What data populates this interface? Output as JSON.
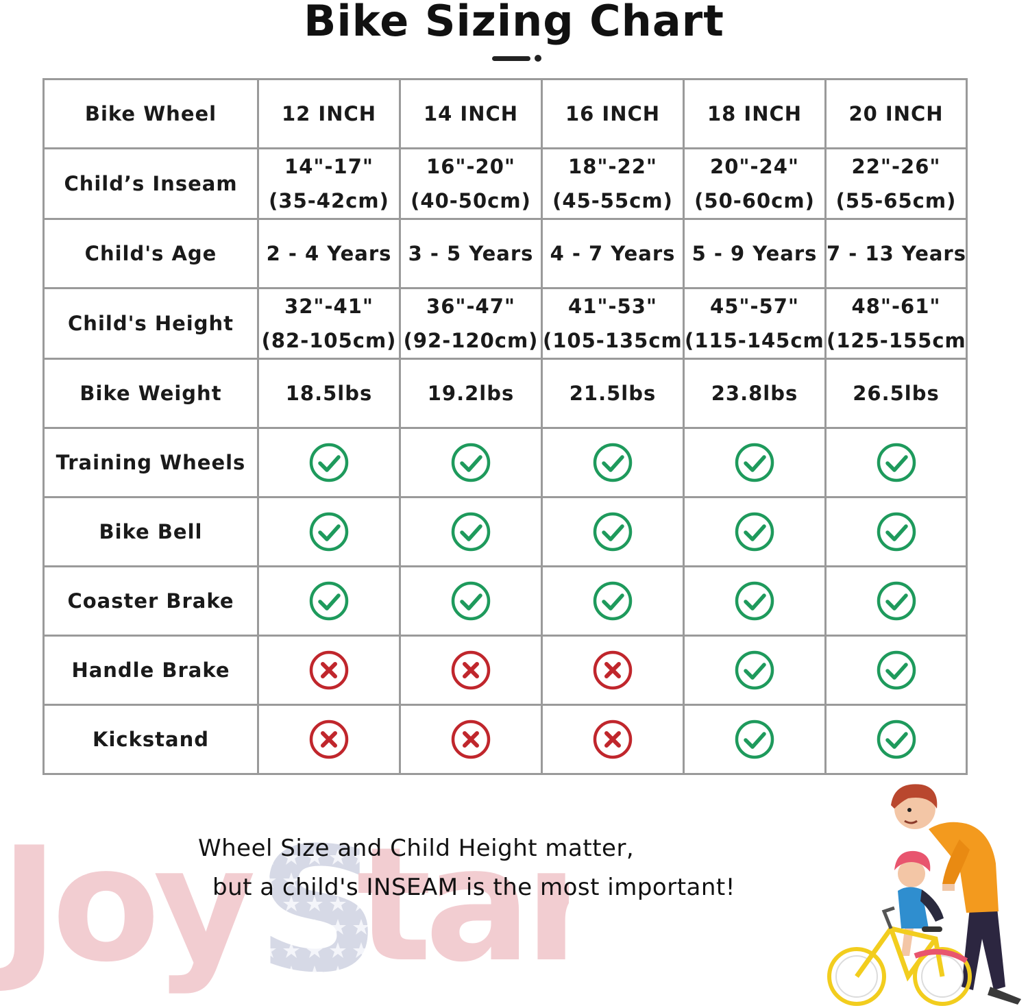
{
  "title": "Bike Sizing Chart",
  "table": {
    "header": {
      "label": "Bike Wheel",
      "values": [
        "12 INCH",
        "14 INCH",
        "16 INCH",
        "18 INCH",
        "20 INCH"
      ]
    },
    "rows": [
      {
        "label": "Child’s Inseam",
        "type": "text2",
        "values": [
          [
            "14\"-17\"",
            "(35-42cm)"
          ],
          [
            "16\"-20\"",
            "(40-50cm)"
          ],
          [
            "18\"-22\"",
            "(45-55cm)"
          ],
          [
            "20\"-24\"",
            "(50-60cm)"
          ],
          [
            "22\"-26\"",
            "(55-65cm)"
          ]
        ]
      },
      {
        "label": "Child's Age",
        "type": "text",
        "values": [
          "2 - 4 Years",
          "3 - 5 Years",
          "4 - 7 Years",
          "5 - 9 Years",
          "7 - 13 Years"
        ]
      },
      {
        "label": "Child's Height",
        "type": "text2",
        "values": [
          [
            "32\"-41\"",
            "(82-105cm)"
          ],
          [
            "36\"-47\"",
            "(92-120cm)"
          ],
          [
            "41\"-53\"",
            "(105-135cm)"
          ],
          [
            "45\"-57\"",
            "(115-145cm)"
          ],
          [
            "48\"-61\"",
            "(125-155cm)"
          ]
        ]
      },
      {
        "label": "Bike Weight",
        "type": "text",
        "values": [
          "18.5lbs",
          "19.2lbs",
          "21.5lbs",
          "23.8lbs",
          "26.5lbs"
        ]
      },
      {
        "label": "Training Wheels",
        "type": "icon",
        "values": [
          "check",
          "check",
          "check",
          "check",
          "check"
        ]
      },
      {
        "label": "Bike Bell",
        "type": "icon",
        "values": [
          "check",
          "check",
          "check",
          "check",
          "check"
        ]
      },
      {
        "label": "Coaster Brake",
        "type": "icon",
        "values": [
          "check",
          "check",
          "check",
          "check",
          "check"
        ]
      },
      {
        "label": "Handle Brake",
        "type": "icon",
        "values": [
          "cross",
          "cross",
          "cross",
          "check",
          "check"
        ]
      },
      {
        "label": "Kickstand",
        "type": "icon",
        "values": [
          "cross",
          "cross",
          "cross",
          "check",
          "check"
        ]
      }
    ]
  },
  "slogan": {
    "line1": "Wheel Size and Child Height matter,",
    "line2": "but a child's INSEAM is the most important!"
  },
  "watermark": {
    "text": "JoyStar"
  },
  "colors": {
    "check": "#1e9a5c",
    "cross": "#c0262c",
    "border": "#9a9a9a",
    "watermark": "#f0c8cc",
    "star": "#c9ccde"
  }
}
